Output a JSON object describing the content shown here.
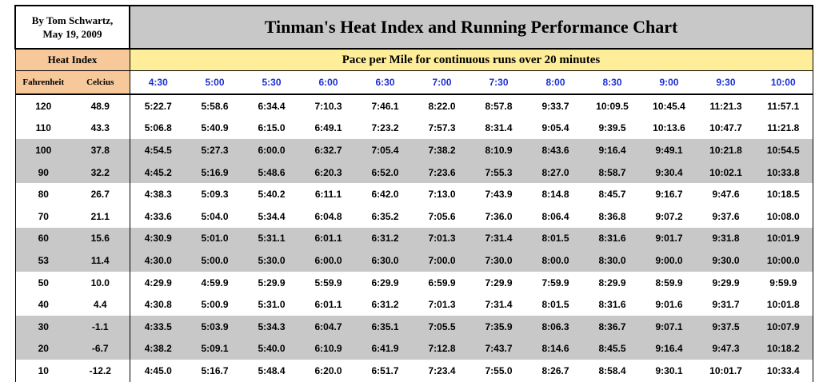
{
  "header": {
    "author_line1": "By Tom Schwartz,",
    "author_line2": "May 19, 2009",
    "title": "Tinman's Heat Index and Running Performance Chart",
    "heat_index_label": "Heat Index",
    "pace_label": "Pace per Mile for continuous runs over 20 minutes",
    "fahrenheit_label": "Fahrenheit",
    "celcius_label": "Celcius",
    "paces": [
      "4:30",
      "5:00",
      "5:30",
      "6:00",
      "6:30",
      "7:00",
      "7:30",
      "8:00",
      "8:30",
      "9:00",
      "9:30",
      "10:00"
    ]
  },
  "colors": {
    "title_bg": "#c8c8c8",
    "heat_index_bg": "#f6c89a",
    "pace_label_bg": "#ffee99",
    "pace_header_text": "#1a2fd6",
    "shaded_row_bg": "#c8c8c8"
  },
  "rows": [
    {
      "f": "120",
      "c": "48.9",
      "shade": false,
      "v": [
        "5:22.7",
        "5:58.6",
        "6:34.4",
        "7:10.3",
        "7:46.1",
        "8:22.0",
        "8:57.8",
        "9:33.7",
        "10:09.5",
        "10:45.4",
        "11:21.3",
        "11:57.1"
      ]
    },
    {
      "f": "110",
      "c": "43.3",
      "shade": false,
      "v": [
        "5:06.8",
        "5:40.9",
        "6:15.0",
        "6:49.1",
        "7:23.2",
        "7:57.3",
        "8:31.4",
        "9:05.4",
        "9:39.5",
        "10:13.6",
        "10:47.7",
        "11:21.8"
      ]
    },
    {
      "f": "100",
      "c": "37.8",
      "shade": true,
      "v": [
        "4:54.5",
        "5:27.3",
        "6:00.0",
        "6:32.7",
        "7:05.4",
        "7:38.2",
        "8:10.9",
        "8:43.6",
        "9:16.4",
        "9:49.1",
        "10:21.8",
        "10:54.5"
      ]
    },
    {
      "f": "90",
      "c": "32.2",
      "shade": true,
      "v": [
        "4:45.2",
        "5:16.9",
        "5:48.6",
        "6:20.3",
        "6:52.0",
        "7:23.6",
        "7:55.3",
        "8:27.0",
        "8:58.7",
        "9:30.4",
        "10:02.1",
        "10:33.8"
      ]
    },
    {
      "f": "80",
      "c": "26.7",
      "shade": false,
      "v": [
        "4:38.3",
        "5:09.3",
        "5:40.2",
        "6:11.1",
        "6:42.0",
        "7:13.0",
        "7:43.9",
        "8:14.8",
        "8:45.7",
        "9:16.7",
        "9:47.6",
        "10:18.5"
      ]
    },
    {
      "f": "70",
      "c": "21.1",
      "shade": false,
      "v": [
        "4:33.6",
        "5:04.0",
        "5:34.4",
        "6:04.8",
        "6:35.2",
        "7:05.6",
        "7:36.0",
        "8:06.4",
        "8:36.8",
        "9:07.2",
        "9:37.6",
        "10:08.0"
      ]
    },
    {
      "f": "60",
      "c": "15.6",
      "shade": true,
      "v": [
        "4:30.9",
        "5:01.0",
        "5:31.1",
        "6:01.1",
        "6:31.2",
        "7:01.3",
        "7:31.4",
        "8:01.5",
        "8:31.6",
        "9:01.7",
        "9:31.8",
        "10:01.9"
      ]
    },
    {
      "f": "53",
      "c": "11.4",
      "shade": true,
      "v": [
        "4:30.0",
        "5:00.0",
        "5:30.0",
        "6:00.0",
        "6:30.0",
        "7:00.0",
        "7:30.0",
        "8:00.0",
        "8:30.0",
        "9:00.0",
        "9:30.0",
        "10:00.0"
      ]
    },
    {
      "f": "50",
      "c": "10.0",
      "shade": false,
      "v": [
        "4:29.9",
        "4:59.9",
        "5:29.9",
        "5:59.9",
        "6:29.9",
        "6:59.9",
        "7:29.9",
        "7:59.9",
        "8:29.9",
        "8:59.9",
        "9:29.9",
        "9:59.9"
      ]
    },
    {
      "f": "40",
      "c": "4.4",
      "shade": false,
      "v": [
        "4:30.8",
        "5:00.9",
        "5:31.0",
        "6:01.1",
        "6:31.2",
        "7:01.3",
        "7:31.4",
        "8:01.5",
        "8:31.6",
        "9:01.6",
        "9:31.7",
        "10:01.8"
      ]
    },
    {
      "f": "30",
      "c": "-1.1",
      "shade": true,
      "v": [
        "4:33.5",
        "5:03.9",
        "5:34.3",
        "6:04.7",
        "6:35.1",
        "7:05.5",
        "7:35.9",
        "8:06.3",
        "8:36.7",
        "9:07.1",
        "9:37.5",
        "10:07.9"
      ]
    },
    {
      "f": "20",
      "c": "-6.7",
      "shade": true,
      "v": [
        "4:38.2",
        "5:09.1",
        "5:40.0",
        "6:10.9",
        "6:41.9",
        "7:12.8",
        "7:43.7",
        "8:14.6",
        "8:45.5",
        "9:16.4",
        "9:47.3",
        "10:18.2"
      ]
    },
    {
      "f": "10",
      "c": "-12.2",
      "shade": false,
      "v": [
        "4:45.0",
        "5:16.7",
        "5:48.4",
        "6:20.0",
        "6:51.7",
        "7:23.4",
        "7:55.0",
        "8:26.7",
        "8:58.4",
        "9:30.1",
        "10:01.7",
        "10:33.4"
      ]
    }
  ]
}
